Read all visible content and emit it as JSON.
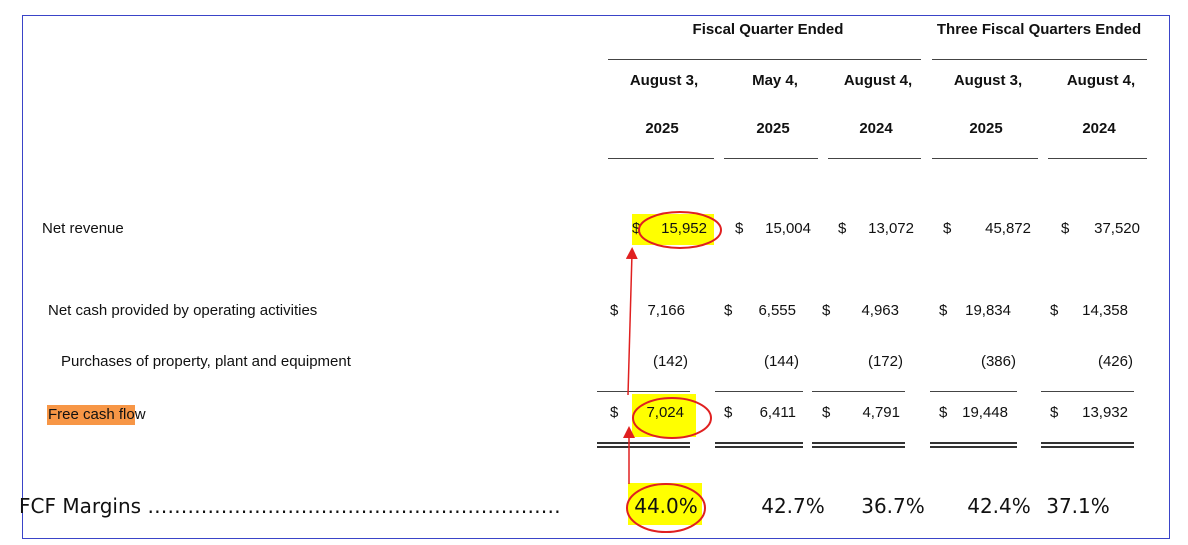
{
  "header": {
    "group_fiscal_quarter": "Fiscal Quarter Ended",
    "group_three_quarters": "Three Fiscal Quarters Ended",
    "columns": [
      {
        "month": "August 3,",
        "year": "2025"
      },
      {
        "month": "May 4,",
        "year": "2025"
      },
      {
        "month": "August 4,",
        "year": "2024"
      },
      {
        "month": "August 3,",
        "year": "2025"
      },
      {
        "month": "August 4,",
        "year": "2024"
      }
    ]
  },
  "rows": {
    "net_revenue": {
      "label": "Net revenue",
      "currency": "$",
      "values": [
        "15,952",
        "15,004",
        "13,072",
        "45,872",
        "37,520"
      ]
    },
    "operating_cash": {
      "label": "Net cash provided by operating activities",
      "currency": "$",
      "values": [
        "7,166",
        "6,555",
        "4,963",
        "19,834",
        "14,358"
      ]
    },
    "ppe": {
      "label": "Purchases of property, plant and equipment",
      "values": [
        "(142)",
        "(144)",
        "(172)",
        "(386)",
        "(426)"
      ]
    },
    "fcf": {
      "label": "Free cash flow",
      "currency": "$",
      "values": [
        "7,024",
        "6,411",
        "4,791",
        "19,448",
        "13,932"
      ]
    },
    "fcf_margin": {
      "label": "FCF Margins ……………………………………………………………………",
      "values": [
        "44.0%",
        "42.7%",
        "36.7%",
        "42.4%",
        "37.1%"
      ]
    }
  },
  "colors": {
    "highlight_yellow": "#ffff00",
    "highlight_orange": "#f79646",
    "annotation_red": "#e02020",
    "frame_blue": "#3a44c8"
  }
}
